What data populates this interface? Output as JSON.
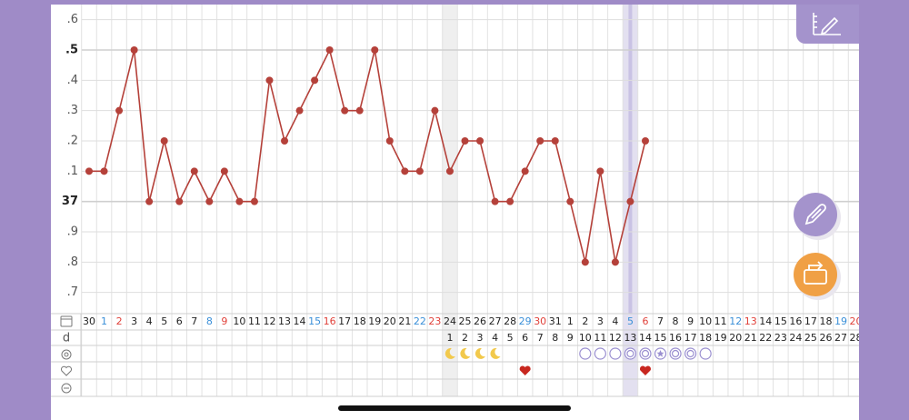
{
  "chart_data": {
    "type": "line",
    "categories": [
      "30",
      "1",
      "2",
      "3",
      "4",
      "5",
      "6",
      "7",
      "8",
      "9",
      "10",
      "11",
      "12",
      "13",
      "14",
      "15",
      "16",
      "17",
      "18",
      "19",
      "20",
      "21",
      "22",
      "23",
      "24",
      "25",
      "26",
      "27",
      "28",
      "29",
      "30",
      "31",
      "1",
      "2",
      "3",
      "4",
      "5",
      "6",
      "7",
      "8",
      "9",
      "10",
      "11",
      "12",
      "13",
      "14",
      "15",
      "16",
      "17",
      "18",
      "19",
      "20"
    ],
    "category_colors": [
      "#222",
      "#3a8fd8",
      "#e0413a",
      "#222",
      "#222",
      "#222",
      "#222",
      "#222",
      "#3a8fd8",
      "#e0413a",
      "#222",
      "#222",
      "#222",
      "#222",
      "#222",
      "#3a8fd8",
      "#e0413a",
      "#222",
      "#222",
      "#222",
      "#222",
      "#222",
      "#3a8fd8",
      "#e0413a",
      "#222",
      "#222",
      "#222",
      "#222",
      "#222",
      "#3a8fd8",
      "#e0413a",
      "#222",
      "#222",
      "#222",
      "#222",
      "#222",
      "#3a8fd8",
      "#e0413a",
      "#222",
      "#222",
      "#222",
      "#222",
      "#222",
      "#3a8fd8",
      "#e0413a",
      "#222",
      "#222",
      "#222",
      "#222",
      "#222",
      "#3a8fd8",
      "#e0413a"
    ],
    "series": [
      {
        "color": "#b5413a",
        "values": [
          37.1,
          37.1,
          37.3,
          37.5,
          37.0,
          37.2,
          37.0,
          37.1,
          37.0,
          37.1,
          37.0,
          37.0,
          37.4,
          37.2,
          37.3,
          37.4,
          37.5,
          37.3,
          37.3,
          37.5,
          37.2,
          37.1,
          37.1,
          37.3,
          37.1,
          37.2,
          37.2,
          37.0,
          37.0,
          37.1,
          37.2,
          37.2,
          37.0,
          36.8,
          37.1,
          36.8,
          37.0,
          37.2,
          null,
          null,
          null,
          null,
          null,
          null,
          null,
          null,
          null,
          null,
          null,
          null,
          null,
          null
        ]
      }
    ],
    "ylim": [
      36.63,
      37.65
    ],
    "yticks": [
      {
        "value": 37.6,
        "label": ".6"
      },
      {
        "value": 37.5,
        "label": ".5"
      },
      {
        "value": 37.4,
        "label": ".4"
      },
      {
        "value": 37.3,
        "label": ".3"
      },
      {
        "value": 37.2,
        "label": ".2"
      },
      {
        "value": 37.1,
        "label": ".1"
      },
      37,
      {
        "value": 36.9,
        "label": ".9"
      },
      {
        "value": 36.8,
        "label": ".8"
      },
      {
        "value": 36.7,
        "label": ".7"
      }
    ],
    "bold_ytick_indices": [
      1,
      6
    ],
    "grid": true,
    "cycle_day_label": "d",
    "cycle_days": [
      null,
      null,
      null,
      null,
      null,
      null,
      null,
      null,
      null,
      null,
      null,
      null,
      null,
      null,
      null,
      null,
      null,
      null,
      null,
      null,
      null,
      null,
      null,
      null,
      1,
      2,
      3,
      4,
      5,
      6,
      7,
      8,
      9,
      10,
      11,
      12,
      13,
      14,
      15,
      16,
      17,
      18,
      19,
      20,
      21,
      22,
      23,
      24,
      25,
      26,
      27,
      28
    ],
    "selected_index": 36,
    "shaded_index": 24,
    "moon_days": [
      24,
      25,
      26,
      27
    ],
    "test_results": [
      {
        "index": 33,
        "kind": "open"
      },
      {
        "index": 34,
        "kind": "open"
      },
      {
        "index": 35,
        "kind": "open"
      },
      {
        "index": 36,
        "kind": "double"
      },
      {
        "index": 37,
        "kind": "double"
      },
      {
        "index": 38,
        "kind": "star"
      },
      {
        "index": 39,
        "kind": "double"
      },
      {
        "index": 40,
        "kind": "double"
      },
      {
        "index": 41,
        "kind": "open"
      }
    ],
    "hearts": [
      29,
      37
    ]
  }
}
